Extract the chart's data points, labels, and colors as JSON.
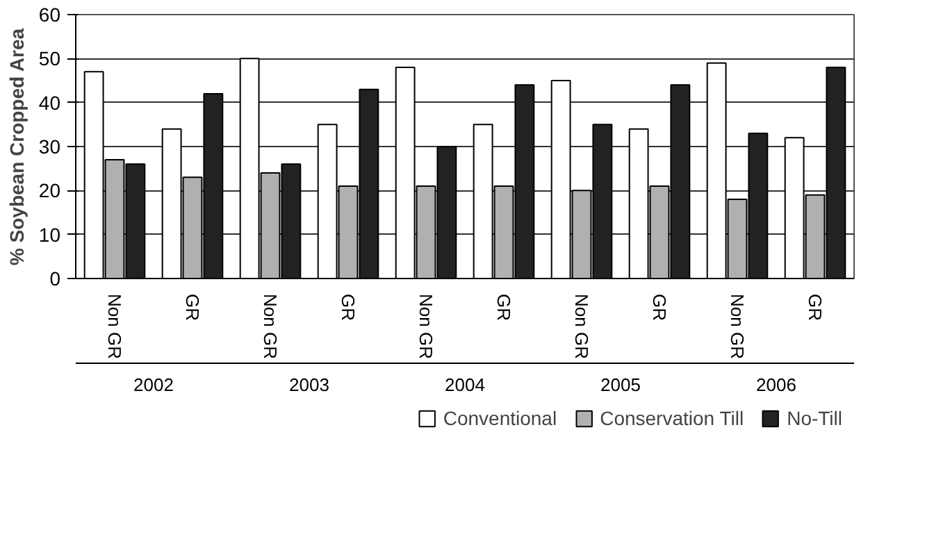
{
  "chart_data": {
    "type": "bar",
    "ylabel": "% Soybean Cropped Area",
    "categories": [
      "Non GR",
      "GR",
      "Non GR",
      "GR",
      "Non GR",
      "GR",
      "Non GR",
      "GR",
      "Non GR",
      "GR"
    ],
    "annotations": [
      "2002",
      "2003",
      "2004",
      "2005",
      "2006"
    ],
    "series": [
      {
        "name": "Conventional",
        "color": "#ffffff",
        "values": [
          47,
          34,
          50,
          35,
          48,
          35,
          45,
          34,
          49,
          32
        ]
      },
      {
        "name": "Conservation Till",
        "color": "#b0b0b0",
        "values": [
          27,
          23,
          24,
          21,
          21,
          21,
          20,
          21,
          18,
          19
        ]
      },
      {
        "name": "No-Till",
        "color": "#222222",
        "values": [
          26,
          42,
          26,
          43,
          30,
          44,
          35,
          44,
          33,
          48
        ]
      }
    ],
    "ylim": [
      0,
      60
    ],
    "yticks": [
      0,
      10,
      20,
      30,
      40,
      50,
      60
    ],
    "grid": "y",
    "legend": "bottom"
  }
}
